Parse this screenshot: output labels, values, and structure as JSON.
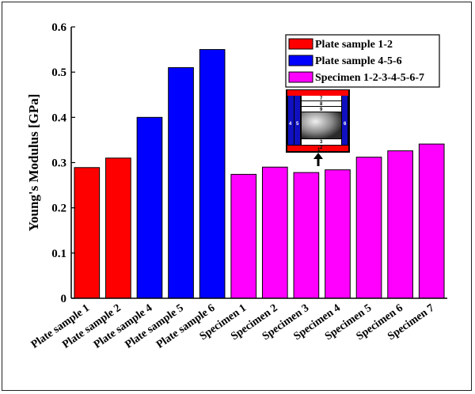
{
  "chart_data": {
    "type": "bar",
    "ylabel": "Young's Modulus [GPa]",
    "xlabel": "",
    "ylim": [
      0,
      0.6
    ],
    "yticks": [
      "0",
      "0.1",
      "0.2",
      "0.3",
      "0.4",
      "0.5",
      "0.6"
    ],
    "categories": [
      "Plate sample 1",
      "Plate sample 2",
      "Plate sample 4",
      "Plate sample 5",
      "Plate sample 6",
      "Specimen 1",
      "Specimen 2",
      "Specimen 3",
      "Specimen 4",
      "Specimen 5",
      "Specimen 6",
      "Specimen 7"
    ],
    "values": [
      0.289,
      0.31,
      0.4,
      0.51,
      0.55,
      0.274,
      0.29,
      0.278,
      0.284,
      0.312,
      0.326,
      0.341
    ],
    "bar_groups": [
      0,
      0,
      1,
      1,
      1,
      2,
      2,
      2,
      2,
      2,
      2,
      2
    ],
    "series": [
      {
        "name": "Plate sample 1-2",
        "color": "#ff0000"
      },
      {
        "name": "Plate sample 4-5-6",
        "color": "#0000ff"
      },
      {
        "name": "Specimen 1-2-3-4-5-6-7",
        "color": "#ff00ff"
      }
    ],
    "grid": false,
    "legend_position": "top-right",
    "inset_labels": [
      "7",
      "8",
      "9",
      "4",
      "5",
      "6",
      "3",
      "2",
      "1"
    ]
  }
}
